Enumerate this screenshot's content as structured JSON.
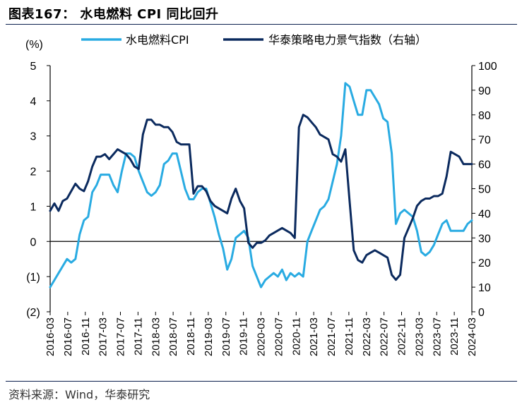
{
  "figure": {
    "title": "图表167： 水电燃料 CPI 同比回升",
    "source": "资料来源：Wind，华泰研究"
  },
  "colors": {
    "cpi": "#29abe2",
    "index": "#0b2a5e",
    "axis": "#000000"
  },
  "chart_data": {
    "type": "line",
    "ylabel_left": "(%)",
    "ylim_left": [
      -2,
      5
    ],
    "yticks_left": [
      "(2)",
      "(1)",
      "0",
      "1",
      "2",
      "3",
      "4",
      "5"
    ],
    "ylim_right": [
      0,
      100
    ],
    "yticks_right": [
      "0",
      "10",
      "20",
      "30",
      "40",
      "50",
      "60",
      "70",
      "80",
      "90",
      "100"
    ],
    "legend_position": "top",
    "x_tick_labels": [
      "2016-03",
      "2016-07",
      "2016-11",
      "2017-03",
      "2017-07",
      "2017-11",
      "2018-03",
      "2018-07",
      "2018-11",
      "2019-03",
      "2019-07",
      "2019-11",
      "2020-03",
      "2020-07",
      "2020-11",
      "2021-03",
      "2021-07",
      "2021-11",
      "2022-03",
      "2022-07",
      "2022-11",
      "2023-03",
      "2023-07",
      "2023-11",
      "2024-03"
    ],
    "x_start": "2016-03",
    "x_end": "2024-03",
    "series": [
      {
        "name": "水电燃料CPI",
        "axis": "left",
        "values": [
          -1.3,
          -1.1,
          -0.9,
          -0.7,
          -0.5,
          -0.6,
          -0.5,
          0.2,
          0.6,
          0.7,
          1.4,
          1.6,
          1.9,
          1.9,
          1.9,
          1.6,
          1.4,
          2.0,
          2.5,
          2.5,
          2.4,
          2.0,
          1.7,
          1.4,
          1.3,
          1.4,
          1.6,
          2.2,
          2.3,
          2.5,
          2.5,
          2.0,
          1.5,
          1.2,
          1.2,
          1.4,
          1.5,
          1.5,
          1.1,
          0.7,
          0.2,
          -0.2,
          -0.8,
          -0.5,
          0.1,
          0.2,
          0.3,
          0.1,
          -0.7,
          -1.0,
          -1.3,
          -1.1,
          -1.0,
          -0.9,
          -1.0,
          -0.8,
          -1.1,
          -0.9,
          -1.0,
          -0.9,
          -1.0,
          0.0,
          0.3,
          0.6,
          0.9,
          1.0,
          1.2,
          1.7,
          2.2,
          3.0,
          4.5,
          4.4,
          4.0,
          3.6,
          3.6,
          4.3,
          4.3,
          4.1,
          3.9,
          3.5,
          3.4,
          2.5,
          0.5,
          0.8,
          0.9,
          0.8,
          0.7,
          0.3,
          -0.3,
          -0.4,
          -0.3,
          -0.1,
          0.2,
          0.5,
          0.6,
          0.3,
          0.3,
          0.3,
          0.3,
          0.5,
          0.6
        ]
      },
      {
        "name": "华泰策略电力景气指数（右轴）",
        "axis": "right",
        "values": [
          41,
          44,
          41,
          45,
          46,
          49,
          52,
          50,
          49,
          53,
          59,
          63,
          63,
          64,
          62,
          64,
          66,
          65,
          64,
          62,
          59,
          58,
          72,
          78,
          78,
          76,
          76,
          75,
          75,
          73,
          69,
          68,
          68,
          68,
          48,
          51,
          51,
          49,
          45,
          43,
          42,
          41,
          40,
          46,
          50,
          45,
          42,
          28,
          26,
          28,
          28,
          29,
          31,
          32,
          33,
          34,
          33,
          32,
          30,
          75,
          80,
          79,
          77,
          75,
          72,
          71,
          70,
          64,
          63,
          61,
          66,
          45,
          25,
          21,
          20,
          23,
          24,
          25,
          24,
          23,
          22,
          15,
          13,
          15,
          30,
          34,
          38,
          43,
          45,
          46,
          46,
          47,
          47,
          48,
          55,
          65,
          64,
          63,
          60,
          60,
          60
        ]
      }
    ]
  }
}
